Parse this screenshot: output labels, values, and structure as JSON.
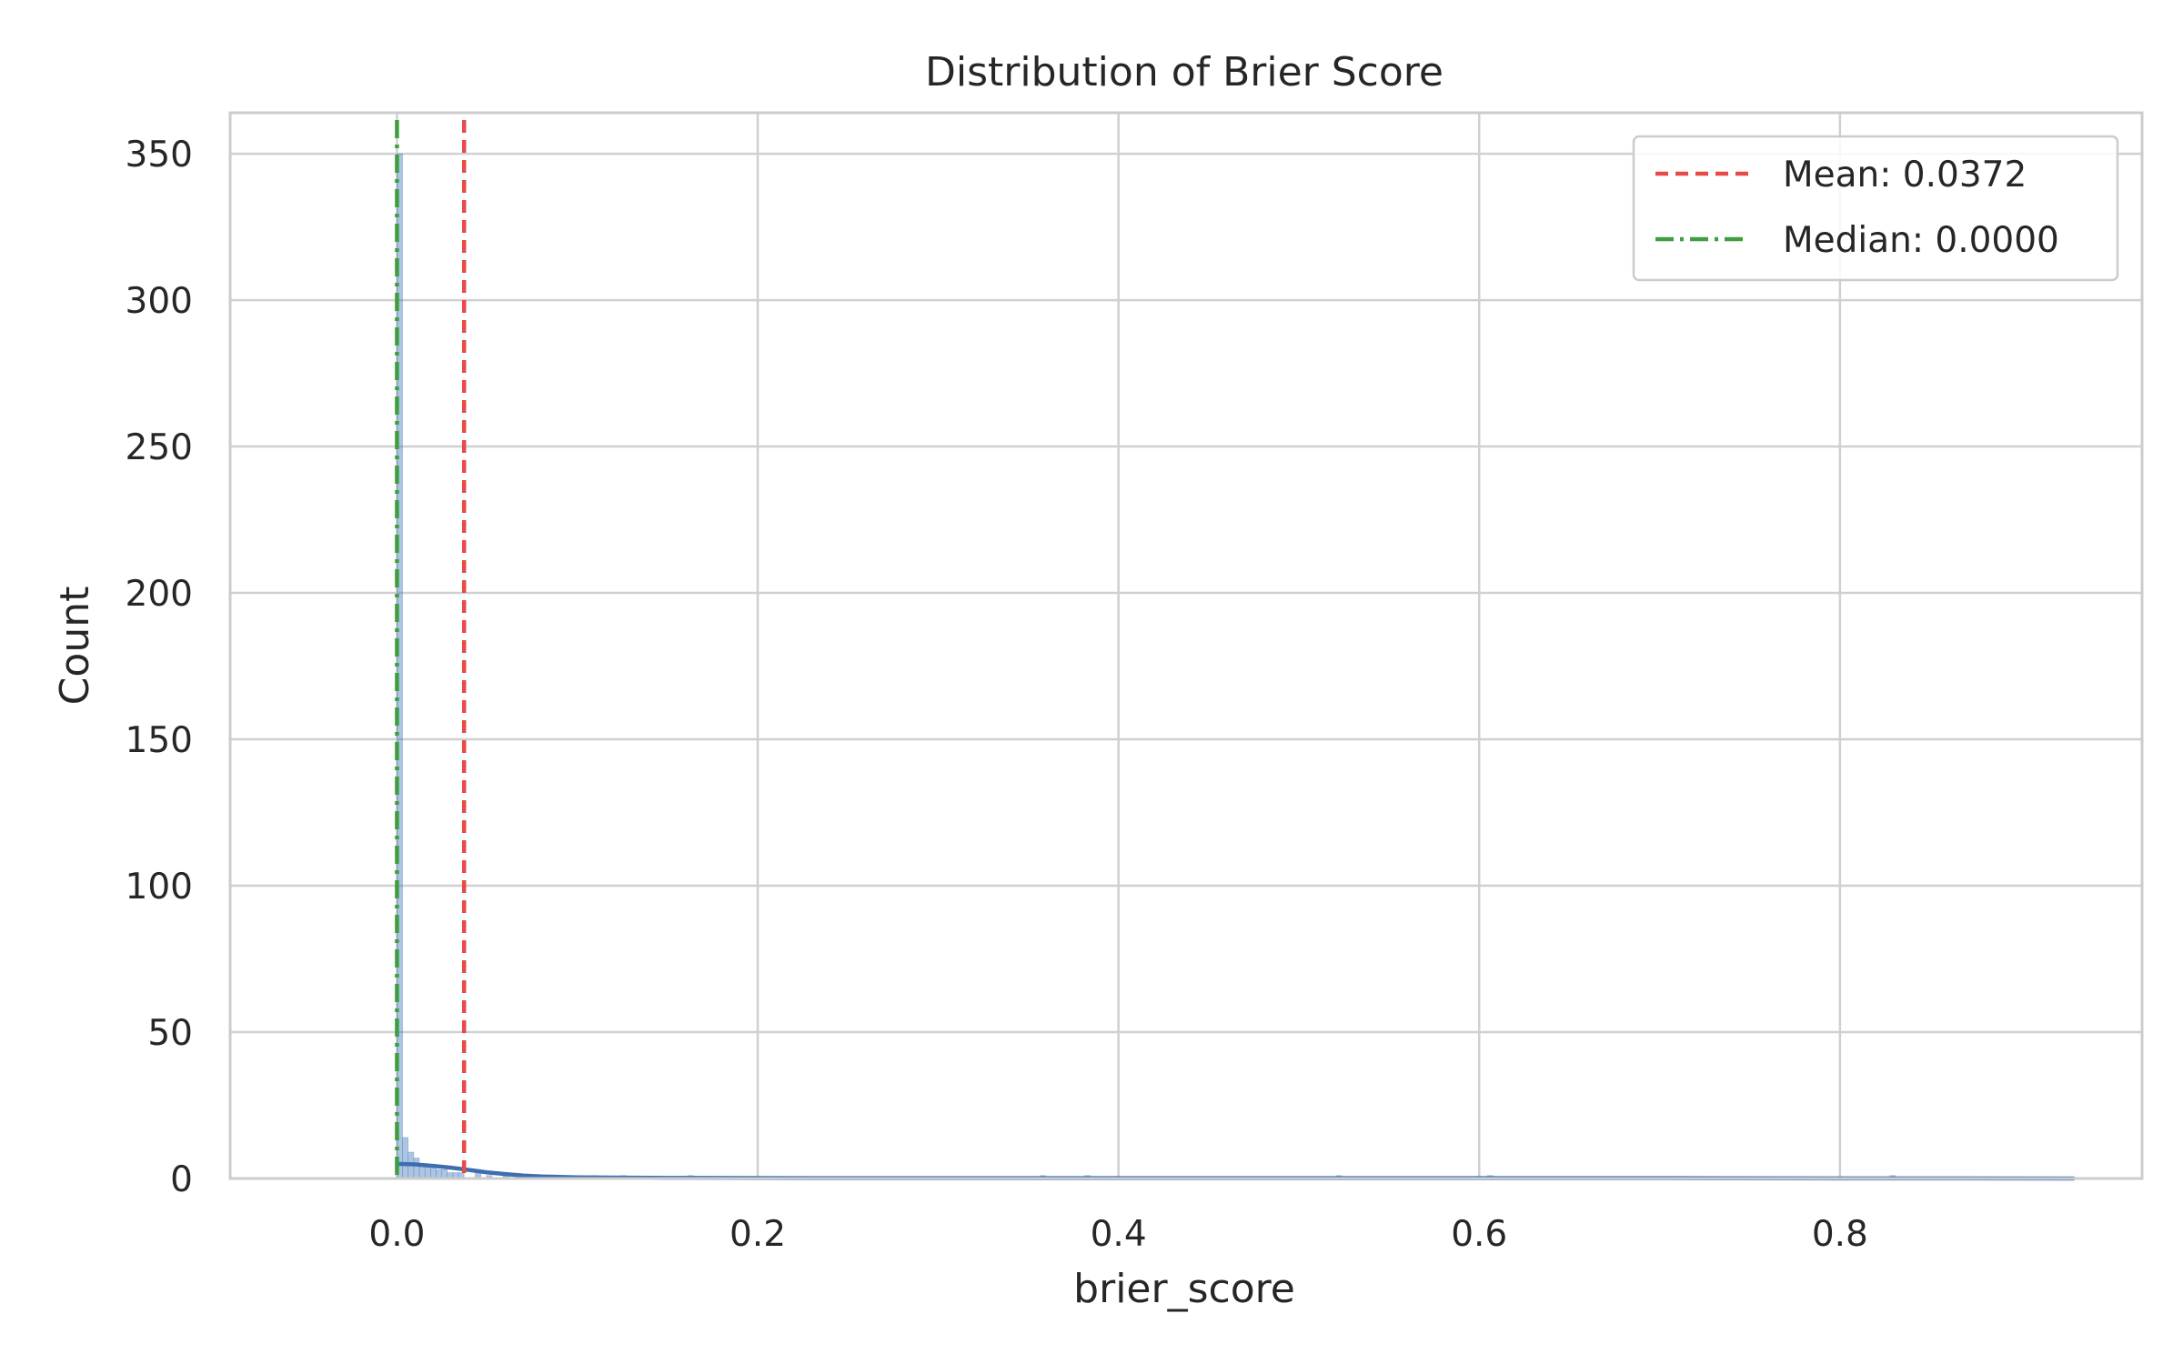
{
  "chart_data": {
    "type": "histogram",
    "title": "Distribution of Brier Score",
    "xlabel": "brier_score",
    "ylabel": "Count",
    "xlim": [
      -0.0925,
      0.9675
    ],
    "ylim": [
      0,
      364
    ],
    "xticks": [
      0.0,
      0.2,
      0.4,
      0.6,
      0.8
    ],
    "xtick_labels": [
      "0.0",
      "0.2",
      "0.4",
      "0.6",
      "0.8"
    ],
    "yticks": [
      0,
      50,
      100,
      150,
      200,
      250,
      300,
      350
    ],
    "ytick_labels": [
      "0",
      "50",
      "100",
      "150",
      "200",
      "250",
      "300",
      "350"
    ],
    "grid": true,
    "bar_color": "#4c7fbf",
    "bins": [
      {
        "x0": 0.0,
        "x1": 0.0031,
        "count": 350
      },
      {
        "x0": 0.0031,
        "x1": 0.0062,
        "count": 14
      },
      {
        "x0": 0.0062,
        "x1": 0.0093,
        "count": 9
      },
      {
        "x0": 0.0093,
        "x1": 0.0124,
        "count": 7
      },
      {
        "x0": 0.0124,
        "x1": 0.0155,
        "count": 5
      },
      {
        "x0": 0.0155,
        "x1": 0.0186,
        "count": 4
      },
      {
        "x0": 0.0186,
        "x1": 0.0217,
        "count": 4
      },
      {
        "x0": 0.0217,
        "x1": 0.0248,
        "count": 3
      },
      {
        "x0": 0.0248,
        "x1": 0.0279,
        "count": 3
      },
      {
        "x0": 0.0279,
        "x1": 0.031,
        "count": 2
      },
      {
        "x0": 0.031,
        "x1": 0.0341,
        "count": 2
      },
      {
        "x0": 0.0341,
        "x1": 0.0372,
        "count": 2
      },
      {
        "x0": 0.0434,
        "x1": 0.0465,
        "count": 2
      },
      {
        "x0": 0.0496,
        "x1": 0.0527,
        "count": 1
      },
      {
        "x0": 0.0589,
        "x1": 0.062,
        "count": 1
      },
      {
        "x0": 0.0775,
        "x1": 0.0806,
        "count": 1
      },
      {
        "x0": 0.1085,
        "x1": 0.1116,
        "count": 1
      },
      {
        "x0": 0.124,
        "x1": 0.1271,
        "count": 1
      },
      {
        "x0": 0.1612,
        "x1": 0.1643,
        "count": 1
      },
      {
        "x0": 0.3565,
        "x1": 0.3596,
        "count": 1
      },
      {
        "x0": 0.3813,
        "x1": 0.3844,
        "count": 1
      },
      {
        "x0": 0.5208,
        "x1": 0.5239,
        "count": 1
      },
      {
        "x0": 0.6045,
        "x1": 0.6076,
        "count": 1
      },
      {
        "x0": 0.8277,
        "x1": 0.8308,
        "count": 1
      }
    ],
    "kde": {
      "color": "#3d6fb0",
      "x": [
        0.0,
        0.01,
        0.02,
        0.03,
        0.04,
        0.05,
        0.06,
        0.07,
        0.08,
        0.1,
        0.15,
        0.2,
        0.3,
        0.4,
        0.5,
        0.6,
        0.7,
        0.8,
        0.93
      ],
      "y": [
        5.0,
        4.8,
        4.3,
        3.7,
        2.9,
        2.1,
        1.5,
        1.0,
        0.7,
        0.4,
        0.2,
        0.15,
        0.1,
        0.1,
        0.1,
        0.1,
        0.1,
        0.05,
        0.0
      ]
    },
    "reference_lines": [
      {
        "label": "Mean: 0.0372",
        "value": 0.0372,
        "color": "#e84a4a",
        "style": "dashed"
      },
      {
        "label": "Median: 0.0000",
        "value": 0.0,
        "color": "#3f9e3f",
        "style": "dashdot"
      }
    ],
    "legend": {
      "placement": "top-right"
    }
  }
}
